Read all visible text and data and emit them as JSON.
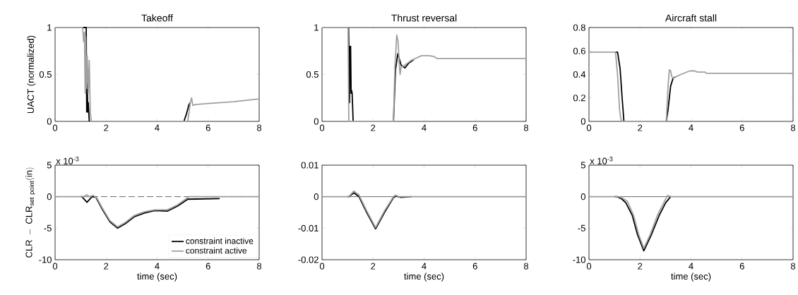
{
  "chart_data": [
    {
      "type": "line",
      "title": "Takeoff",
      "ylabel": "UACT (normalized)",
      "xlim": [
        0,
        8
      ],
      "xticks": [
        0,
        2,
        4,
        6,
        8
      ],
      "ylim": [
        0,
        1
      ],
      "yticks": [
        0,
        0.5,
        1
      ],
      "series": [
        {
          "color": "#000000",
          "x": [
            1.1,
            1.22,
            1.24,
            1.26,
            1.28,
            1.3,
            1.32,
            1.34,
            3,
            5.05,
            5.15,
            5.25,
            5.3
          ],
          "values": [
            1,
            1,
            0.1,
            0.42,
            0.1,
            0.2,
            0.1,
            0,
            null,
            0,
            0.08,
            0.18,
            0.2
          ]
        },
        {
          "color": "#a0a0a0",
          "x": [
            0,
            1.08,
            1.12,
            1.15,
            1.18,
            1.2,
            1.23,
            1.26,
            1.3,
            1.34,
            1.38,
            1.4,
            1.42,
            5.2,
            5.25,
            5.3,
            5.35,
            5.4,
            5.5,
            6,
            7,
            8
          ],
          "values": [
            1,
            1,
            0.85,
            0.95,
            0.3,
            0.9,
            0.35,
            0.7,
            0.3,
            0.65,
            0.1,
            0.05,
            0,
            0,
            0.1,
            0.2,
            0.25,
            0.17,
            0.18,
            0.19,
            0.21,
            0.24
          ]
        }
      ]
    },
    {
      "type": "line",
      "title": "Thrust reversal",
      "xlim": [
        0,
        8
      ],
      "xticks": [
        0,
        2,
        4,
        6,
        8
      ],
      "ylim": [
        0,
        1
      ],
      "yticks": [
        0,
        0.5,
        1
      ],
      "series": [
        {
          "color": "#000000",
          "x": [
            1.04,
            1.08,
            1.1,
            1.12,
            1.14,
            1.16,
            1.18,
            1.22,
            2.0,
            2.8,
            2.88,
            2.97,
            3.1,
            3.25,
            3.4,
            3.6
          ],
          "values": [
            1,
            0.2,
            0.8,
            0.8,
            0.3,
            0.33,
            0.3,
            0,
            null,
            0,
            0.55,
            0.72,
            0.6,
            0.57,
            0.62,
            0.66
          ]
        },
        {
          "color": "#a0a0a0",
          "x": [
            0,
            1.02,
            1.05,
            2.8,
            2.86,
            2.93,
            2.98,
            3.03,
            3.06,
            3.1,
            3.2,
            3.5,
            3.9,
            4.2,
            4.4,
            4.5,
            8
          ],
          "values": [
            1,
            1,
            0,
            0,
            0.6,
            0.92,
            0.85,
            0.6,
            0.5,
            0.58,
            0.59,
            0.65,
            0.7,
            0.7,
            0.69,
            0.67,
            0.67
          ]
        }
      ]
    },
    {
      "type": "line",
      "title": "Aircraft stall",
      "xlim": [
        0,
        8
      ],
      "xticks": [
        0,
        2,
        4,
        6,
        8
      ],
      "ylim": [
        0,
        0.8
      ],
      "yticks": [
        0,
        0.2,
        0.4,
        0.6,
        0.8
      ],
      "series": [
        {
          "color": "#000000",
          "x": [
            1.0,
            1.12,
            1.22,
            1.3,
            1.37,
            2.2,
            3.03,
            3.1,
            3.2,
            3.3,
            3.4
          ],
          "values": [
            0.59,
            0.59,
            0.45,
            0.2,
            0,
            null,
            0,
            0.1,
            0.3,
            0.37,
            0.38
          ]
        },
        {
          "color": "#a0a0a0",
          "x": [
            0,
            1.04,
            1.12,
            1.2,
            1.25,
            1.3,
            3.03,
            3.1,
            3.15,
            3.2,
            3.25,
            3.3,
            3.4,
            3.6,
            3.95,
            4.15,
            4.25,
            4.55,
            4.6,
            8
          ],
          "values": [
            0.59,
            0.59,
            0.4,
            0.1,
            0.02,
            0,
            0,
            0.3,
            0.44,
            0.43,
            0.38,
            0.37,
            0.38,
            0.4,
            0.43,
            0.43,
            0.42,
            0.42,
            0.41,
            0.41
          ]
        }
      ]
    },
    {
      "type": "line",
      "xlabel": "time (sec)",
      "ylabel": "\\mathrm{CLR\\ -\\ CLR_{set\\ point}(in)}",
      "annotations": [
        "x 10$^{-3}$"
      ],
      "legend": "bottom right",
      "xlim": [
        0,
        8
      ],
      "xticks": [
        0,
        2,
        4,
        6,
        8
      ],
      "ylim": [
        -10,
        5
      ],
      "yticks": [
        -10,
        -5,
        0,
        5
      ],
      "ref_lines": [
        {
          "axis": "y",
          "value": 0,
          "color": "#000000",
          "line_style": "dashed"
        }
      ],
      "series": [
        {
          "name": "constraint inactive",
          "color": "#000000",
          "x": [
            1.0,
            1.05,
            1.25,
            1.45,
            1.6,
            1.85,
            2.15,
            2.45,
            2.75,
            3.1,
            3.5,
            3.9,
            4.4,
            4.8,
            5.2,
            6.45
          ],
          "values": [
            0,
            0,
            -0.9,
            0,
            -0.1,
            -2,
            -4,
            -5,
            -4.3,
            -3.2,
            -2.6,
            -2.2,
            -2.3,
            -1.5,
            -0.4,
            -0.3
          ]
        },
        {
          "name": "constraint active",
          "color": "#a0a0a0",
          "x": [
            0,
            1.1,
            1.25,
            1.35,
            1.5,
            1.65,
            1.85,
            2.15,
            2.45,
            2.75,
            3.1,
            3.5,
            3.9,
            4.4,
            4.8,
            5.25,
            8
          ],
          "values": [
            0,
            0,
            0.3,
            0,
            0.2,
            -0.3,
            -1.8,
            -3.8,
            -4.8,
            -4.1,
            -3,
            -2.4,
            -2.1,
            -2.1,
            -1.3,
            0,
            0
          ]
        }
      ]
    },
    {
      "type": "line",
      "xlabel": "time (sec)",
      "xlim": [
        0,
        8
      ],
      "xticks": [
        0,
        2,
        4,
        6,
        8
      ],
      "ylim": [
        -0.02,
        0.01
      ],
      "yticks": [
        -0.02,
        -0.01,
        0,
        0.01
      ],
      "ref_lines": [
        {
          "axis": "y",
          "value": 0,
          "color": "#000000",
          "line_style": "solid"
        }
      ],
      "series": [
        {
          "color": "#000000",
          "x": [
            1.0,
            1.05,
            1.25,
            1.45,
            1.75,
            2.1,
            2.45,
            2.8,
            2.9,
            3.1,
            3.5
          ],
          "values": [
            0,
            0,
            0.0012,
            0,
            -0.005,
            -0.0102,
            -0.005,
            -0.0003,
            0.0002,
            -0.0002,
            0
          ]
        },
        {
          "color": "#a0a0a0",
          "x": [
            0,
            1.05,
            1.25,
            1.45,
            1.75,
            2.1,
            2.45,
            2.8,
            2.88,
            3.0,
            8
          ],
          "values": [
            0,
            0,
            0.0018,
            0.0005,
            -0.0045,
            -0.0098,
            -0.0045,
            0,
            0.0005,
            0,
            0
          ]
        }
      ]
    },
    {
      "type": "line",
      "xlabel": "time (sec)",
      "annotations": [
        "x 10$^{-3}$"
      ],
      "xlim": [
        0,
        8
      ],
      "xticks": [
        0,
        2,
        4,
        6,
        8
      ],
      "ylim": [
        -10,
        5
      ],
      "yticks": [
        -10,
        -5,
        0,
        5
      ],
      "ref_lines": [
        {
          "axis": "y",
          "value": 0,
          "color": "#000000",
          "line_style": "solid"
        }
      ],
      "series": [
        {
          "color": "#000000",
          "x": [
            1.0,
            1.1,
            1.3,
            1.45,
            1.7,
            1.9,
            2.15,
            2.45,
            2.75,
            3.0,
            3.2
          ],
          "values": [
            0,
            0,
            -0.4,
            -1,
            -3,
            -6,
            -8.6,
            -6,
            -3,
            -1,
            0
          ]
        },
        {
          "color": "#a0a0a0",
          "x": [
            0,
            1.15,
            1.3,
            1.5,
            1.75,
            1.95,
            2.15,
            2.4,
            2.7,
            2.95,
            3.08,
            3.2,
            8
          ],
          "values": [
            0,
            0,
            -0.2,
            -0.7,
            -3,
            -6,
            -8.2,
            -6,
            -2.8,
            -0.8,
            0.2,
            0,
            0
          ]
        }
      ]
    }
  ]
}
